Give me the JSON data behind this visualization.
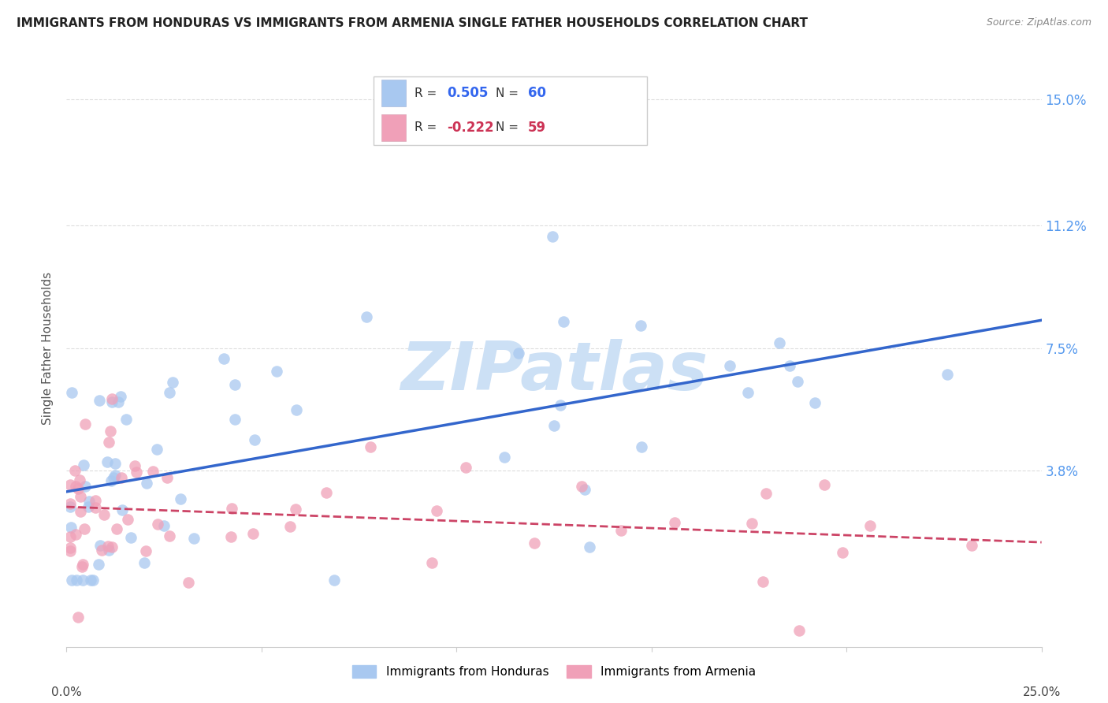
{
  "title": "IMMIGRANTS FROM HONDURAS VS IMMIGRANTS FROM ARMENIA SINGLE FATHER HOUSEHOLDS CORRELATION CHART",
  "source": "Source: ZipAtlas.com",
  "ylabel": "Single Father Households",
  "ytick_labels": [
    "15.0%",
    "11.2%",
    "7.5%",
    "3.8%"
  ],
  "ytick_values": [
    0.15,
    0.112,
    0.075,
    0.038
  ],
  "xlim": [
    0.0,
    0.25
  ],
  "ylim": [
    -0.015,
    0.165
  ],
  "color_honduras": "#a8c8f0",
  "color_armenia": "#f0a0b8",
  "color_line_honduras": "#3366cc",
  "color_line_armenia": "#cc4466",
  "watermark_text": "ZIPatlas",
  "watermark_color": "#cce0f5",
  "background_color": "#ffffff",
  "grid_color": "#dddddd",
  "r_honduras": "0.505",
  "n_honduras": "60",
  "r_armenia": "-0.222",
  "n_armenia": "59",
  "legend_label_honduras": "Immigrants from Honduras",
  "legend_label_armenia": "Immigrants from Armenia"
}
